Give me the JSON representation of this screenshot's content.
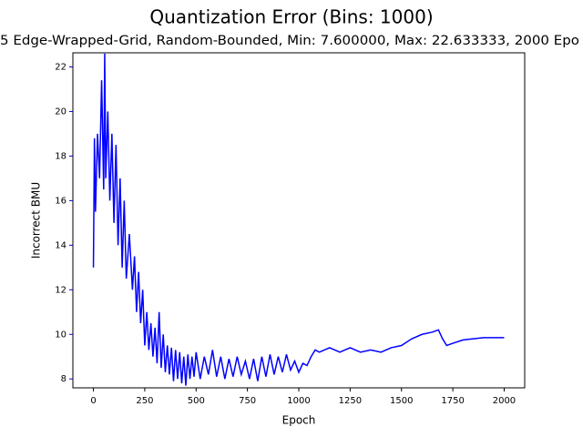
{
  "chart_data": {
    "type": "line",
    "title": "Quantization Error (Bins: 1000)",
    "subtitle": "5 Edge-Wrapped-Grid, Random-Bounded, Min: 7.600000, Max: 22.633333, 2000 Epo",
    "x_label": "Epoch",
    "y_label": "Incorrect BMU",
    "color": "#0000ff",
    "axis_color": "#0000ff",
    "x": [
      0,
      5,
      10,
      20,
      30,
      40,
      50,
      55,
      60,
      70,
      80,
      90,
      100,
      110,
      120,
      130,
      140,
      150,
      160,
      175,
      190,
      200,
      210,
      220,
      230,
      240,
      250,
      260,
      270,
      280,
      290,
      300,
      310,
      320,
      330,
      340,
      350,
      360,
      370,
      380,
      390,
      400,
      410,
      420,
      430,
      440,
      450,
      460,
      470,
      480,
      490,
      500,
      520,
      540,
      560,
      580,
      600,
      620,
      640,
      660,
      680,
      700,
      720,
      740,
      760,
      780,
      800,
      820,
      840,
      860,
      880,
      900,
      920,
      940,
      960,
      980,
      1000,
      1020,
      1040,
      1060,
      1080,
      1100,
      1150,
      1200,
      1250,
      1300,
      1350,
      1400,
      1450,
      1500,
      1550,
      1600,
      1650,
      1680,
      1700,
      1720,
      1750,
      1800,
      1850,
      1900,
      1950,
      2000
    ],
    "values": [
      13.0,
      18.8,
      15.5,
      19,
      17,
      21.4,
      16.5,
      22.6,
      17,
      20,
      16,
      19,
      15,
      18.5,
      14,
      17,
      13,
      16,
      12.5,
      14.5,
      12,
      13.5,
      11,
      12.8,
      10.5,
      12,
      9.5,
      11,
      9.3,
      10.5,
      9,
      10.3,
      8.7,
      11,
      8.5,
      10,
      8.3,
      9.5,
      8.2,
      9.4,
      7.9,
      9.3,
      8.0,
      9.2,
      7.8,
      9.0,
      7.7,
      9.1,
      8.0,
      9.0,
      8.1,
      9.2,
      8.0,
      9.0,
      8.2,
      9.3,
      8.1,
      9.0,
      8.0,
      8.9,
      8.1,
      9.0,
      8.2,
      8.8,
      8.0,
      8.9,
      7.9,
      9.0,
      8.1,
      9.1,
      8.2,
      9.0,
      8.3,
      9.1,
      8.4,
      8.8,
      8.3,
      8.7,
      8.6,
      9.0,
      9.3,
      9.2,
      9.4,
      9.2,
      9.4,
      9.2,
      9.3,
      9.2,
      9.4,
      9.5,
      9.8,
      10.0,
      10.1,
      10.2,
      9.8,
      9.5,
      9.6,
      9.75,
      9.8,
      9.85,
      9.85,
      9.85
    ],
    "xlim": [
      -100,
      2100
    ],
    "ylim": [
      7.6,
      22.633333
    ],
    "xticks": [
      0,
      250,
      500,
      750,
      1000,
      1250,
      1500,
      1750,
      2000
    ],
    "yticks": [
      8,
      10,
      12,
      14,
      16,
      18,
      20,
      22
    ]
  }
}
